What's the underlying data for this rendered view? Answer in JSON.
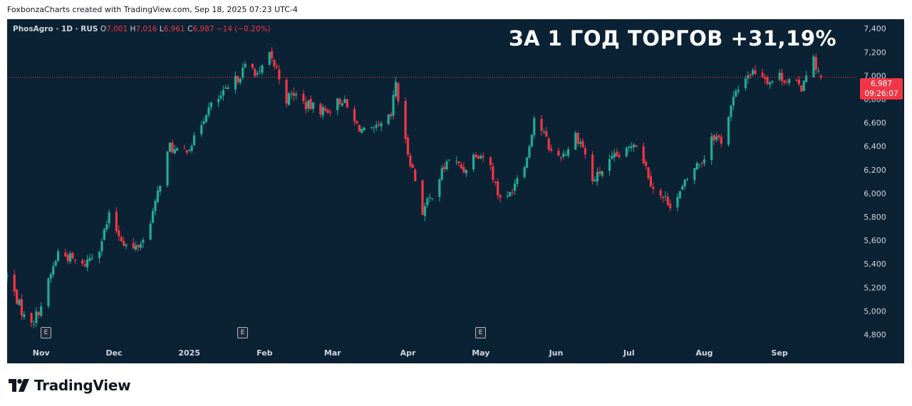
{
  "caption": "FoxbonzaCharts created with TradingView.com, Sep 18, 2025 07:23 UTC-4",
  "legend": {
    "symbol": "PhosAgro · 1D · RUS",
    "o_label": "O",
    "o_value": "7,001",
    "h_label": "H",
    "h_value": "7,016",
    "l_label": "L",
    "l_value": "6,961",
    "c_label": "C",
    "c_value": "6,987",
    "change": "−14 (−0.20%)"
  },
  "headline": "ЗА 1 ГОД ТОРГОВ +31,19%",
  "price_tag": {
    "price": "6,987",
    "countdown": "09:26:07"
  },
  "earnings_marker": "E",
  "footer": {
    "brand": "TradingView",
    "logo_icon": "tradingview-logo-icon"
  },
  "colors": {
    "up": "#22ab94",
    "down": "#f23645",
    "background": "#0b2234",
    "axis_text": "#d1d4dc"
  },
  "chart_data": {
    "type": "candlestick",
    "title": "",
    "y_axis": {
      "ticks": [
        "4,800",
        "5,000",
        "5,200",
        "5,400",
        "5,600",
        "5,800",
        "6,000",
        "6,200",
        "6,400",
        "6,600",
        "6,800",
        "7,000",
        "7,200",
        "7,400"
      ],
      "range": [
        4700,
        7480
      ]
    },
    "x_axis": {
      "labels": [
        "Nov",
        "Dec",
        "2025",
        "Feb",
        "Mar",
        "Apr",
        "May",
        "Jun",
        "Jul",
        "Aug",
        "Sep"
      ],
      "range": [
        "2024-10-18",
        "2025-09-30"
      ]
    },
    "x_label_dates": [
      "2024-11-01",
      "2024-12-01",
      "2025-01-01",
      "2025-02-01",
      "2025-03-01",
      "2025-04-01",
      "2025-05-01",
      "2025-06-01",
      "2025-07-01",
      "2025-08-01",
      "2025-09-01"
    ],
    "earnings_dates": [
      "2024-11-01",
      "2025-02-08",
      "2025-05-17"
    ],
    "last_close": 6987,
    "path_dates": [
      "2024-10-18",
      "2024-10-22",
      "2024-10-25",
      "2024-10-29",
      "2024-11-01",
      "2024-11-08",
      "2024-11-13",
      "2024-11-18",
      "2024-11-25",
      "2024-11-29",
      "2024-12-03",
      "2024-12-08",
      "2024-12-13",
      "2024-12-18",
      "2024-12-21",
      "2024-12-24",
      "2024-12-28",
      "2025-01-03",
      "2025-01-08",
      "2025-01-12",
      "2025-01-18",
      "2025-01-25",
      "2025-01-30",
      "2025-02-02",
      "2025-02-06",
      "2025-02-10",
      "2025-02-13",
      "2025-02-18",
      "2025-02-26",
      "2025-03-05",
      "2025-03-10",
      "2025-03-15",
      "2025-03-20",
      "2025-03-25",
      "2025-03-27",
      "2025-03-30",
      "2025-04-03",
      "2025-04-07",
      "2025-04-10",
      "2025-04-13",
      "2025-04-18",
      "2025-04-24",
      "2025-04-29",
      "2025-05-04",
      "2025-05-08",
      "2025-05-12",
      "2025-05-17",
      "2025-05-20",
      "2025-05-23",
      "2025-05-27",
      "2025-05-31",
      "2025-06-05",
      "2025-06-09",
      "2025-06-12",
      "2025-06-16",
      "2025-06-20",
      "2025-06-25",
      "2025-06-30",
      "2025-07-03",
      "2025-07-06",
      "2025-07-10",
      "2025-07-13",
      "2025-07-16",
      "2025-07-19",
      "2025-07-22",
      "2025-07-27",
      "2025-08-01",
      "2025-08-04",
      "2025-08-08",
      "2025-08-13",
      "2025-08-18",
      "2025-08-23",
      "2025-08-28",
      "2025-09-01",
      "2025-09-05",
      "2025-09-10",
      "2025-09-14",
      "2025-09-18"
    ],
    "path_closes": [
      5300,
      5100,
      4950,
      4920,
      5050,
      5500,
      5450,
      5380,
      5550,
      5800,
      5650,
      5500,
      5600,
      5900,
      6200,
      6400,
      6320,
      6450,
      6700,
      6780,
      6900,
      7100,
      7000,
      7200,
      7050,
      6800,
      6850,
      6750,
      6700,
      6800,
      6600,
      6500,
      6550,
      6650,
      6950,
      6500,
      6200,
      5850,
      5950,
      6100,
      6300,
      6200,
      6350,
      6300,
      6000,
      5950,
      6200,
      6300,
      6650,
      6500,
      6300,
      6350,
      6500,
      6400,
      6100,
      6200,
      6300,
      6350,
      6450,
      6350,
      6100,
      5980,
      5950,
      5900,
      6000,
      6200,
      6300,
      6500,
      6450,
      6800,
      7000,
      7050,
      6950,
      7000,
      6950,
      6900,
      7180,
      6987
    ]
  }
}
